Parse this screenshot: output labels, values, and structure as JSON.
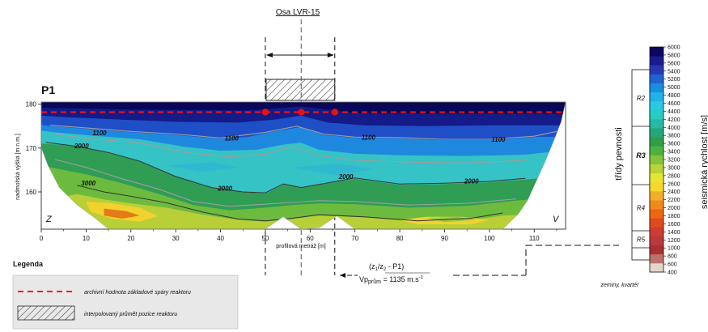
{
  "chart_data": {
    "type": "heatmap",
    "profile_label": "P1",
    "axis_title_label": "Osa LVR-15",
    "xlabel": "profilová metráž [m]",
    "ylabel": "nadmořská výška [m n.m.]",
    "xlim": [
      0,
      117
    ],
    "ylim": [
      151.5,
      180.5
    ],
    "x_ticks": [
      0,
      10,
      20,
      30,
      40,
      50,
      60,
      70,
      80,
      90,
      100,
      110
    ],
    "y_ticks": [
      160,
      170,
      180
    ],
    "left_end_label": "Z",
    "right_end_label": "V",
    "reactor_axis_x": 58,
    "reactor_extent_x": [
      50,
      65.5
    ],
    "foundation_level_m": 178.2,
    "foundation_points_x": [
      50,
      58,
      65.5
    ],
    "contour_labels": [
      {
        "text": "1100",
        "x": 13,
        "y": 173.5
      },
      {
        "text": "1100",
        "x": 42.5,
        "y": 172.3
      },
      {
        "text": "1100",
        "x": 73,
        "y": 172.5
      },
      {
        "text": "1100",
        "x": 102,
        "y": 172.0
      },
      {
        "text": "2000",
        "x": 9,
        "y": 170.5
      },
      {
        "text": "2000",
        "x": 41,
        "y": 160.8
      },
      {
        "text": "2000",
        "x": 68,
        "y": 163.5
      },
      {
        "text": "2000",
        "x": 96,
        "y": 162.5
      },
      {
        "text": "3000",
        "x": 10.5,
        "y": 162.0
      }
    ],
    "contour_lines": [
      {
        "value": 1100,
        "color": "#9e9e9e",
        "points": [
          [
            2,
            175.2
          ],
          [
            10,
            174.6
          ],
          [
            20,
            173.8
          ],
          [
            30,
            173.2
          ],
          [
            40,
            172.3
          ],
          [
            50,
            173.6
          ],
          [
            57,
            175.0
          ],
          [
            63,
            173.2
          ],
          [
            70,
            172.5
          ],
          [
            80,
            172.4
          ],
          [
            90,
            172.0
          ],
          [
            100,
            172.0
          ],
          [
            110,
            172.7
          ],
          [
            115,
            173.8
          ]
        ]
      },
      {
        "value": 2000,
        "color": "#333333",
        "points": [
          [
            1,
            171.3
          ],
          [
            8,
            170.4
          ],
          [
            15,
            169.0
          ],
          [
            22,
            167.0
          ],
          [
            30,
            163.5
          ],
          [
            38,
            161.0
          ],
          [
            45,
            160.0
          ],
          [
            50,
            159.8
          ],
          [
            54,
            161.8
          ],
          [
            58,
            161.0
          ],
          [
            63,
            161.9
          ],
          [
            70,
            163.2
          ],
          [
            80,
            161.8
          ],
          [
            90,
            162.0
          ],
          [
            100,
            162.4
          ],
          [
            108,
            163.1
          ]
        ]
      },
      {
        "value": 1600,
        "color": "#9e9e9e",
        "points": [
          [
            3,
            173.2
          ],
          [
            12,
            172.0
          ],
          [
            22,
            171.2
          ],
          [
            32,
            169.0
          ],
          [
            42,
            168.0
          ],
          [
            50,
            168.6
          ],
          [
            56,
            170.3
          ],
          [
            62,
            168.3
          ],
          [
            70,
            167.2
          ],
          [
            82,
            166.8
          ],
          [
            95,
            166.6
          ],
          [
            108,
            167.2
          ]
        ]
      },
      {
        "value": 2500,
        "color": "#9e9e9e",
        "points": [
          [
            3,
            167.4
          ],
          [
            10,
            165.6
          ],
          [
            18,
            163.0
          ],
          [
            26,
            160.7
          ],
          [
            34,
            157.8
          ],
          [
            42,
            156.7
          ],
          [
            50,
            157.2
          ],
          [
            56,
            157.6
          ],
          [
            62,
            158.0
          ],
          [
            70,
            157.8
          ],
          [
            82,
            157.0
          ],
          [
            95,
            157.4
          ],
          [
            106,
            158.4
          ]
        ]
      },
      {
        "value": 3000,
        "color": "#333333",
        "points": [
          [
            8,
            161.5
          ],
          [
            14,
            160.0
          ],
          [
            20,
            159.0
          ],
          [
            28,
            157.5
          ],
          [
            36,
            155.4
          ],
          [
            44,
            153.8
          ],
          [
            50,
            153.4
          ],
          [
            56,
            154.0
          ],
          [
            62,
            154.8
          ],
          [
            72,
            154.3
          ],
          [
            84,
            153.4
          ],
          [
            96,
            154.0
          ],
          [
            103,
            155.2
          ]
        ]
      }
    ],
    "legend_title": "Legenda",
    "legend_items": [
      {
        "label": "archivní hodnota základové spáry reaktoru",
        "style": "dashed-red-line"
      },
      {
        "label": "interpolovaný průmět pozice reaktoru",
        "style": "hatched-box"
      }
    ],
    "velocity_note_line1": "(z1/z2 - P1)",
    "velocity_note_line2": "Vpprům = 1135 m.s-1",
    "velocity_note_parts": {
      "paren_open": "(",
      "z1": "z",
      "sub1": "1",
      "slash_z2": "/z",
      "sub2": "2",
      "rest": " - P1)",
      "vp": "Vp",
      "sub_prum": "prům",
      "eq": " = 1135 m.s",
      "sup": "-1"
    },
    "strength_axis_label": "třídy pevnosti",
    "strength_classes": [
      {
        "label": "R2",
        "bold": false
      },
      {
        "label": "R3",
        "bold": true
      },
      {
        "label": "R4",
        "bold": false
      },
      {
        "label": "R5",
        "bold": false
      }
    ],
    "strength_bottom_label": "zeminy, kvartér",
    "colorbar_label": "seismická rychlost [m/s]",
    "colorbar_min": 400,
    "colorbar_max": 6000,
    "colorbar_ticks": [
      6000,
      5800,
      5600,
      5400,
      5200,
      5000,
      4800,
      4600,
      4400,
      4200,
      4000,
      3800,
      3600,
      3400,
      3200,
      3000,
      2800,
      2600,
      2400,
      2200,
      2000,
      1800,
      1600,
      1400,
      1200,
      1000,
      800,
      600,
      400
    ],
    "colorbar_colors": [
      "#e4d7c9",
      "#bd7070",
      "#a8322e",
      "#b9393d",
      "#cd3d33",
      "#e04a1f",
      "#ec6712",
      "#f0881c",
      "#f1b02b",
      "#f7d631",
      "#e7e534",
      "#b9d339",
      "#84c23c",
      "#4db23c",
      "#2e9e48",
      "#23a678",
      "#28b8a4",
      "#28cbc4",
      "#27cae0",
      "#1eb2e8",
      "#178ee0",
      "#1f63cf",
      "#2538b4",
      "#1c1b8c",
      "#0c0760"
    ],
    "colors": {
      "foundation_line": "#ff1010",
      "foundation_point": "#e81010",
      "legend_bg": "#e8e8e8"
    }
  }
}
